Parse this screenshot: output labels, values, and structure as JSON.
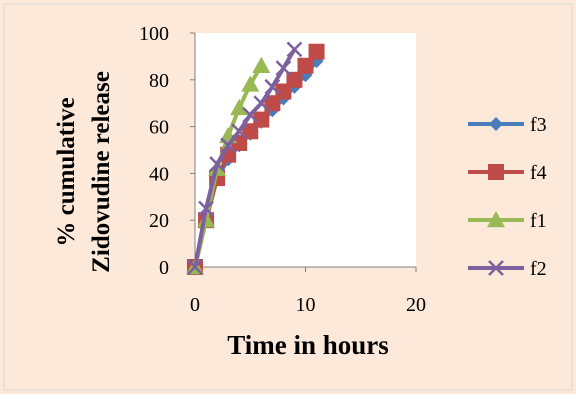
{
  "chart_data": {
    "type": "line",
    "xlabel": "Time in hours",
    "ylabel_lines": [
      "% cumulative",
      "Zidovudine release"
    ],
    "xlim": [
      0,
      20
    ],
    "ylim": [
      0,
      100
    ],
    "xticks": [
      0,
      10,
      20
    ],
    "yticks": [
      0,
      20,
      40,
      60,
      80,
      100
    ],
    "grid": false,
    "legend_position": "right",
    "colors": {
      "background_outer": "#fce9d9",
      "plot_background": "#ffffff",
      "axis": "#808080"
    },
    "series": [
      {
        "name": "f3",
        "color": "#4a7ebb",
        "marker": "diamond",
        "x": [
          0,
          1,
          2,
          3,
          4,
          5,
          6,
          7,
          8,
          9,
          10,
          11
        ],
        "y": [
          0,
          20,
          38,
          46,
          52,
          57,
          62,
          67,
          72,
          77,
          82,
          88
        ]
      },
      {
        "name": "f4",
        "color": "#be4b48",
        "marker": "square",
        "x": [
          0,
          1,
          2,
          3,
          4,
          5,
          6,
          7,
          8,
          9,
          10,
          11
        ],
        "y": [
          0,
          20,
          38,
          48,
          53,
          58,
          63,
          70,
          75,
          80,
          86,
          92
        ]
      },
      {
        "name": "f1",
        "color": "#98b954",
        "marker": "triangle",
        "x": [
          0,
          1,
          2,
          3,
          4,
          5,
          6
        ],
        "y": [
          0,
          20,
          42,
          56,
          68,
          78,
          86
        ]
      },
      {
        "name": "f2",
        "color": "#7d60a0",
        "marker": "x",
        "x": [
          0,
          1,
          2,
          3,
          4,
          5,
          6,
          7,
          8,
          9
        ],
        "y": [
          0,
          25,
          44,
          52,
          58,
          65,
          70,
          77,
          85,
          93
        ]
      }
    ]
  }
}
